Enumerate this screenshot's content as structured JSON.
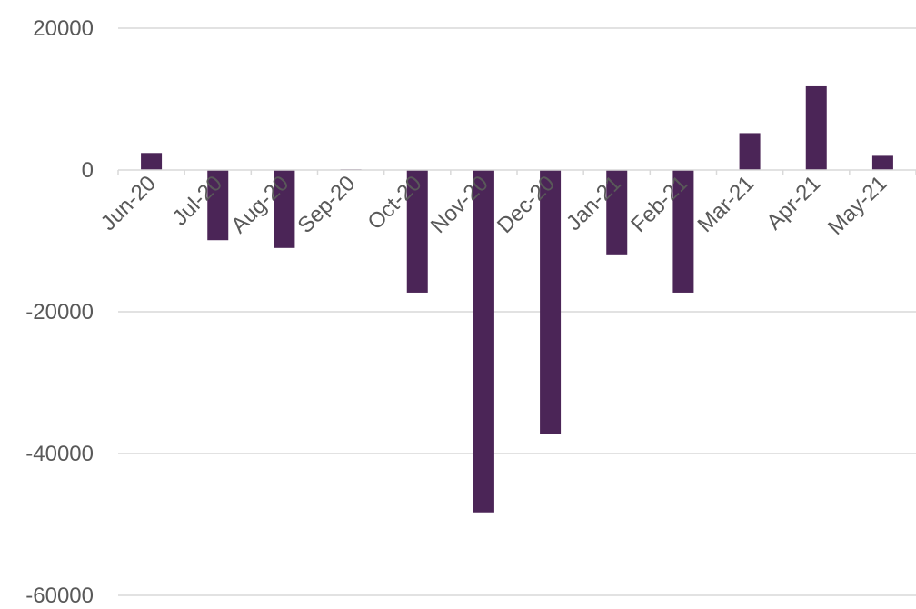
{
  "chart_data": {
    "type": "bar",
    "title": "",
    "xlabel": "",
    "ylabel": "",
    "categories": [
      "Jun-20",
      "Jul-20",
      "Aug-20",
      "Sep-20",
      "Oct-20",
      "Nov-20",
      "Dec-20",
      "Jan-21",
      "Feb-21",
      "Mar-21",
      "Apr-21",
      "May-21"
    ],
    "values": [
      2400,
      -9900,
      -11000,
      100,
      -17300,
      -48300,
      -37200,
      -11900,
      -17300,
      5200,
      11800,
      2000
    ],
    "ylim": [
      -60000,
      20000
    ],
    "yticks": [
      20000,
      0,
      -20000,
      -40000,
      -60000
    ],
    "ytick_labels": [
      "20000",
      "0",
      "-20000",
      "-40000",
      "-60000"
    ],
    "grid": true,
    "legend": "none",
    "bar_color": "#4b2557"
  }
}
